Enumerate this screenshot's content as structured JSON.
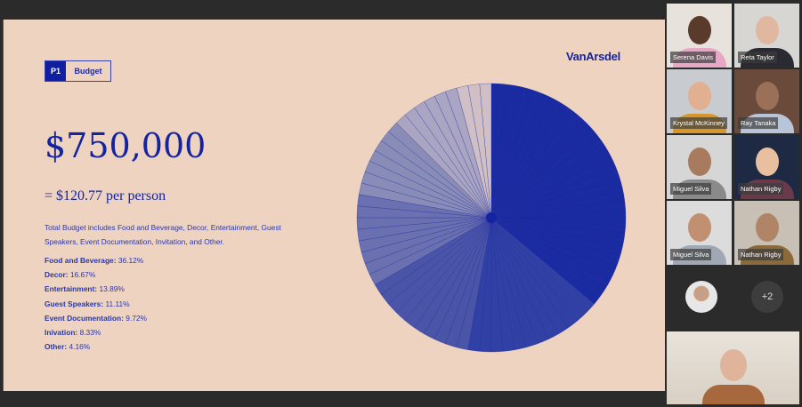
{
  "slide": {
    "tag_number": "P1",
    "tag_label": "Budget",
    "logo": "VanArsdel",
    "total": "$750,000",
    "per_person": "= $120.77 per person",
    "description": "Total Budget includes Food and Beverage, Decor, Entertainment, Guest Speakers, Event Documentation, Invitation, and Other.",
    "legend": [
      {
        "label": "Food and Beverage:",
        "value": "36.12%"
      },
      {
        "label": "Decor:",
        "value": "16.67%"
      },
      {
        "label": "Entertainment:",
        "value": "13.89%"
      },
      {
        "label": "Guest Speakers:",
        "value": "11.11%"
      },
      {
        "label": "Event Documentation:",
        "value": "9.72%"
      },
      {
        "label": "Inivation:",
        "value": "8.33%"
      },
      {
        "label": "Other:",
        "value": "4.16%"
      }
    ]
  },
  "chart_data": {
    "type": "pie",
    "start": "top",
    "direction": "clockwise",
    "categories": [
      "Food and Beverage",
      "Decor",
      "Entertainment",
      "Guest Speakers",
      "Event Documentation",
      "Inivation",
      "Other"
    ],
    "values": [
      36.12,
      16.67,
      13.89,
      11.11,
      9.72,
      8.33,
      4.16
    ],
    "wedges_per_category": [
      26,
      12,
      10,
      8,
      7,
      6,
      3
    ],
    "colors": [
      "#1a2aa0",
      "#3040a5",
      "#4a55a8",
      "#6a70b0",
      "#8a8cb8",
      "#aaa5c2",
      "#d0c0c6"
    ]
  },
  "participants": [
    {
      "name": "Serena Davis"
    },
    {
      "name": "Reta Taylor"
    },
    {
      "name": "Krystal McKinney"
    },
    {
      "name": "Ray Tanaka"
    },
    {
      "name": "Miguel Silva"
    },
    {
      "name": "Nathan Rigby"
    },
    {
      "name": "Miguel Silva"
    },
    {
      "name": "Nathan Rigby"
    }
  ],
  "overflow_count": "+2"
}
